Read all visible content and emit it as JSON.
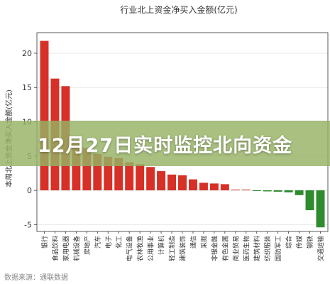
{
  "chart_data": {
    "type": "bar",
    "title": "行业北上资金净买入金额(亿元)",
    "ylabel": "本周北上资金净买入金额(亿元)",
    "ylim": [
      -6,
      23
    ],
    "yticks": [
      -5,
      0,
      5,
      10,
      15,
      20
    ],
    "grid": true,
    "categories": [
      "银行",
      "食品饮料",
      "家用电器",
      "机械设备",
      "房地产",
      "汽车",
      "电子",
      "化工",
      "电气设备",
      "农林牧渔",
      "公用事业",
      "计算机",
      "轻工制造",
      "建筑装饰",
      "通信",
      "采掘",
      "非银金融",
      "有色金属",
      "商业贸易",
      "医药生物",
      "建筑材料",
      "纺织服装",
      "国防军工",
      "综合",
      "传媒",
      "钢铁",
      "交通运输"
    ],
    "values": [
      21.8,
      16.3,
      15.2,
      7.3,
      6.2,
      5.3,
      4.9,
      4.7,
      4.1,
      3.8,
      3.4,
      2.8,
      2.3,
      2.2,
      1.6,
      1.1,
      1.0,
      0.9,
      0.1,
      0.1,
      -0.1,
      -0.15,
      -0.2,
      -0.3,
      -0.7,
      -2.9,
      -5.4
    ],
    "positive_color": "#d73027",
    "negative_color": "#2e8b2e"
  },
  "banner": {
    "text": "12月27日实时监控北向资金"
  },
  "source": {
    "text": "数据来源：通联数据"
  }
}
